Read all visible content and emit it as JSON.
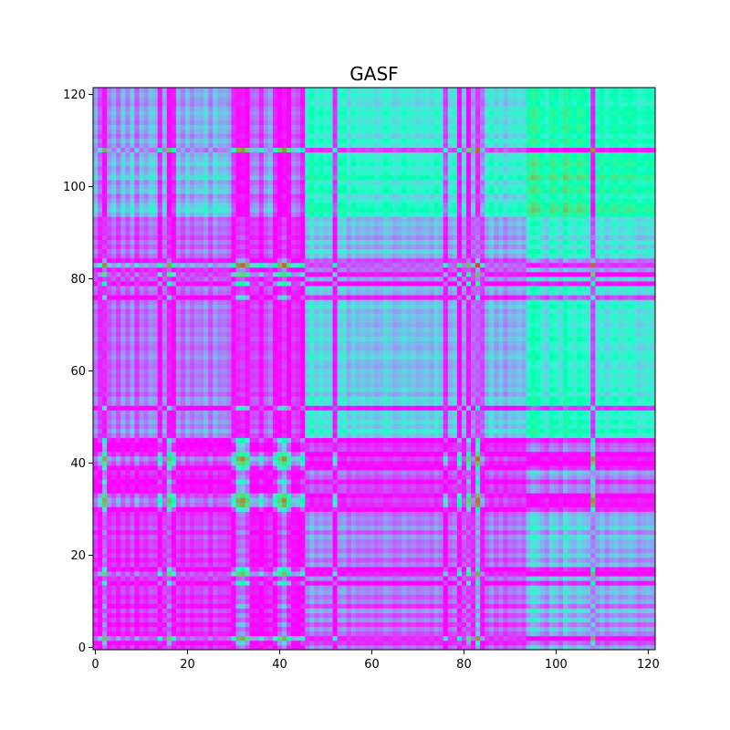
{
  "chart_data": {
    "type": "heatmap",
    "title": "GASF",
    "xlabel": "",
    "ylabel": "",
    "size": 122,
    "xlim": [
      -0.5,
      121.5
    ],
    "ylim": [
      -0.5,
      121.5
    ],
    "origin": "lower",
    "colormap": "rainbow",
    "value_range": [
      -1,
      1
    ],
    "grid": false,
    "formula": "cos(phi_i + phi_j), phi = arccos(x)",
    "x_ticks": [
      0,
      20,
      40,
      60,
      80,
      100,
      120
    ],
    "y_ticks": [
      0,
      20,
      40,
      60,
      80,
      100,
      120
    ],
    "x_tick_labels": [
      "0",
      "20",
      "40",
      "60",
      "80",
      "100",
      "120"
    ],
    "y_tick_labels": [
      "0",
      "20",
      "40",
      "60",
      "80",
      "100",
      "120"
    ],
    "series_values": [
      0.25,
      -0.1,
      -0.85,
      0.1,
      0.3,
      0.0,
      0.35,
      0.1,
      0.4,
      -0.05,
      0.3,
      0.15,
      0.35,
      0.3,
      -0.4,
      0.3,
      -0.8,
      -0.4,
      0.3,
      0.1,
      0.35,
      0.15,
      0.3,
      0.25,
      0.4,
      0.1,
      0.4,
      0.25,
      0.3,
      0.2,
      -0.3,
      -0.85,
      -0.9,
      -0.75,
      0.0,
      0.05,
      -0.3,
      0.1,
      0.25,
      -0.35,
      -0.75,
      -0.9,
      -0.6,
      0.0,
      -0.1,
      -0.45,
      0.55,
      0.7,
      0.55,
      0.65,
      0.55,
      0.6,
      -0.3,
      0.6,
      0.65,
      0.45,
      0.6,
      0.5,
      0.55,
      0.5,
      0.55,
      0.45,
      0.5,
      0.6,
      0.55,
      0.45,
      0.5,
      0.6,
      0.5,
      0.55,
      0.45,
      0.5,
      0.55,
      0.45,
      0.6,
      0.5,
      -0.2,
      0.45,
      0.55,
      -0.5,
      0.4,
      -0.75,
      0.2,
      -0.95,
      0.05,
      0.45,
      0.6,
      0.4,
      0.55,
      0.35,
      0.5,
      0.45,
      0.55,
      0.45,
      0.75,
      0.85,
      0.8,
      0.7,
      0.6,
      0.8,
      0.75,
      0.65,
      0.85,
      0.75,
      0.7,
      0.8,
      0.75,
      0.7,
      -0.9,
      0.65,
      0.75,
      0.6,
      0.7,
      0.75,
      0.65,
      0.7,
      0.75,
      0.7,
      0.6,
      0.65,
      0.7,
      0.65
    ]
  }
}
